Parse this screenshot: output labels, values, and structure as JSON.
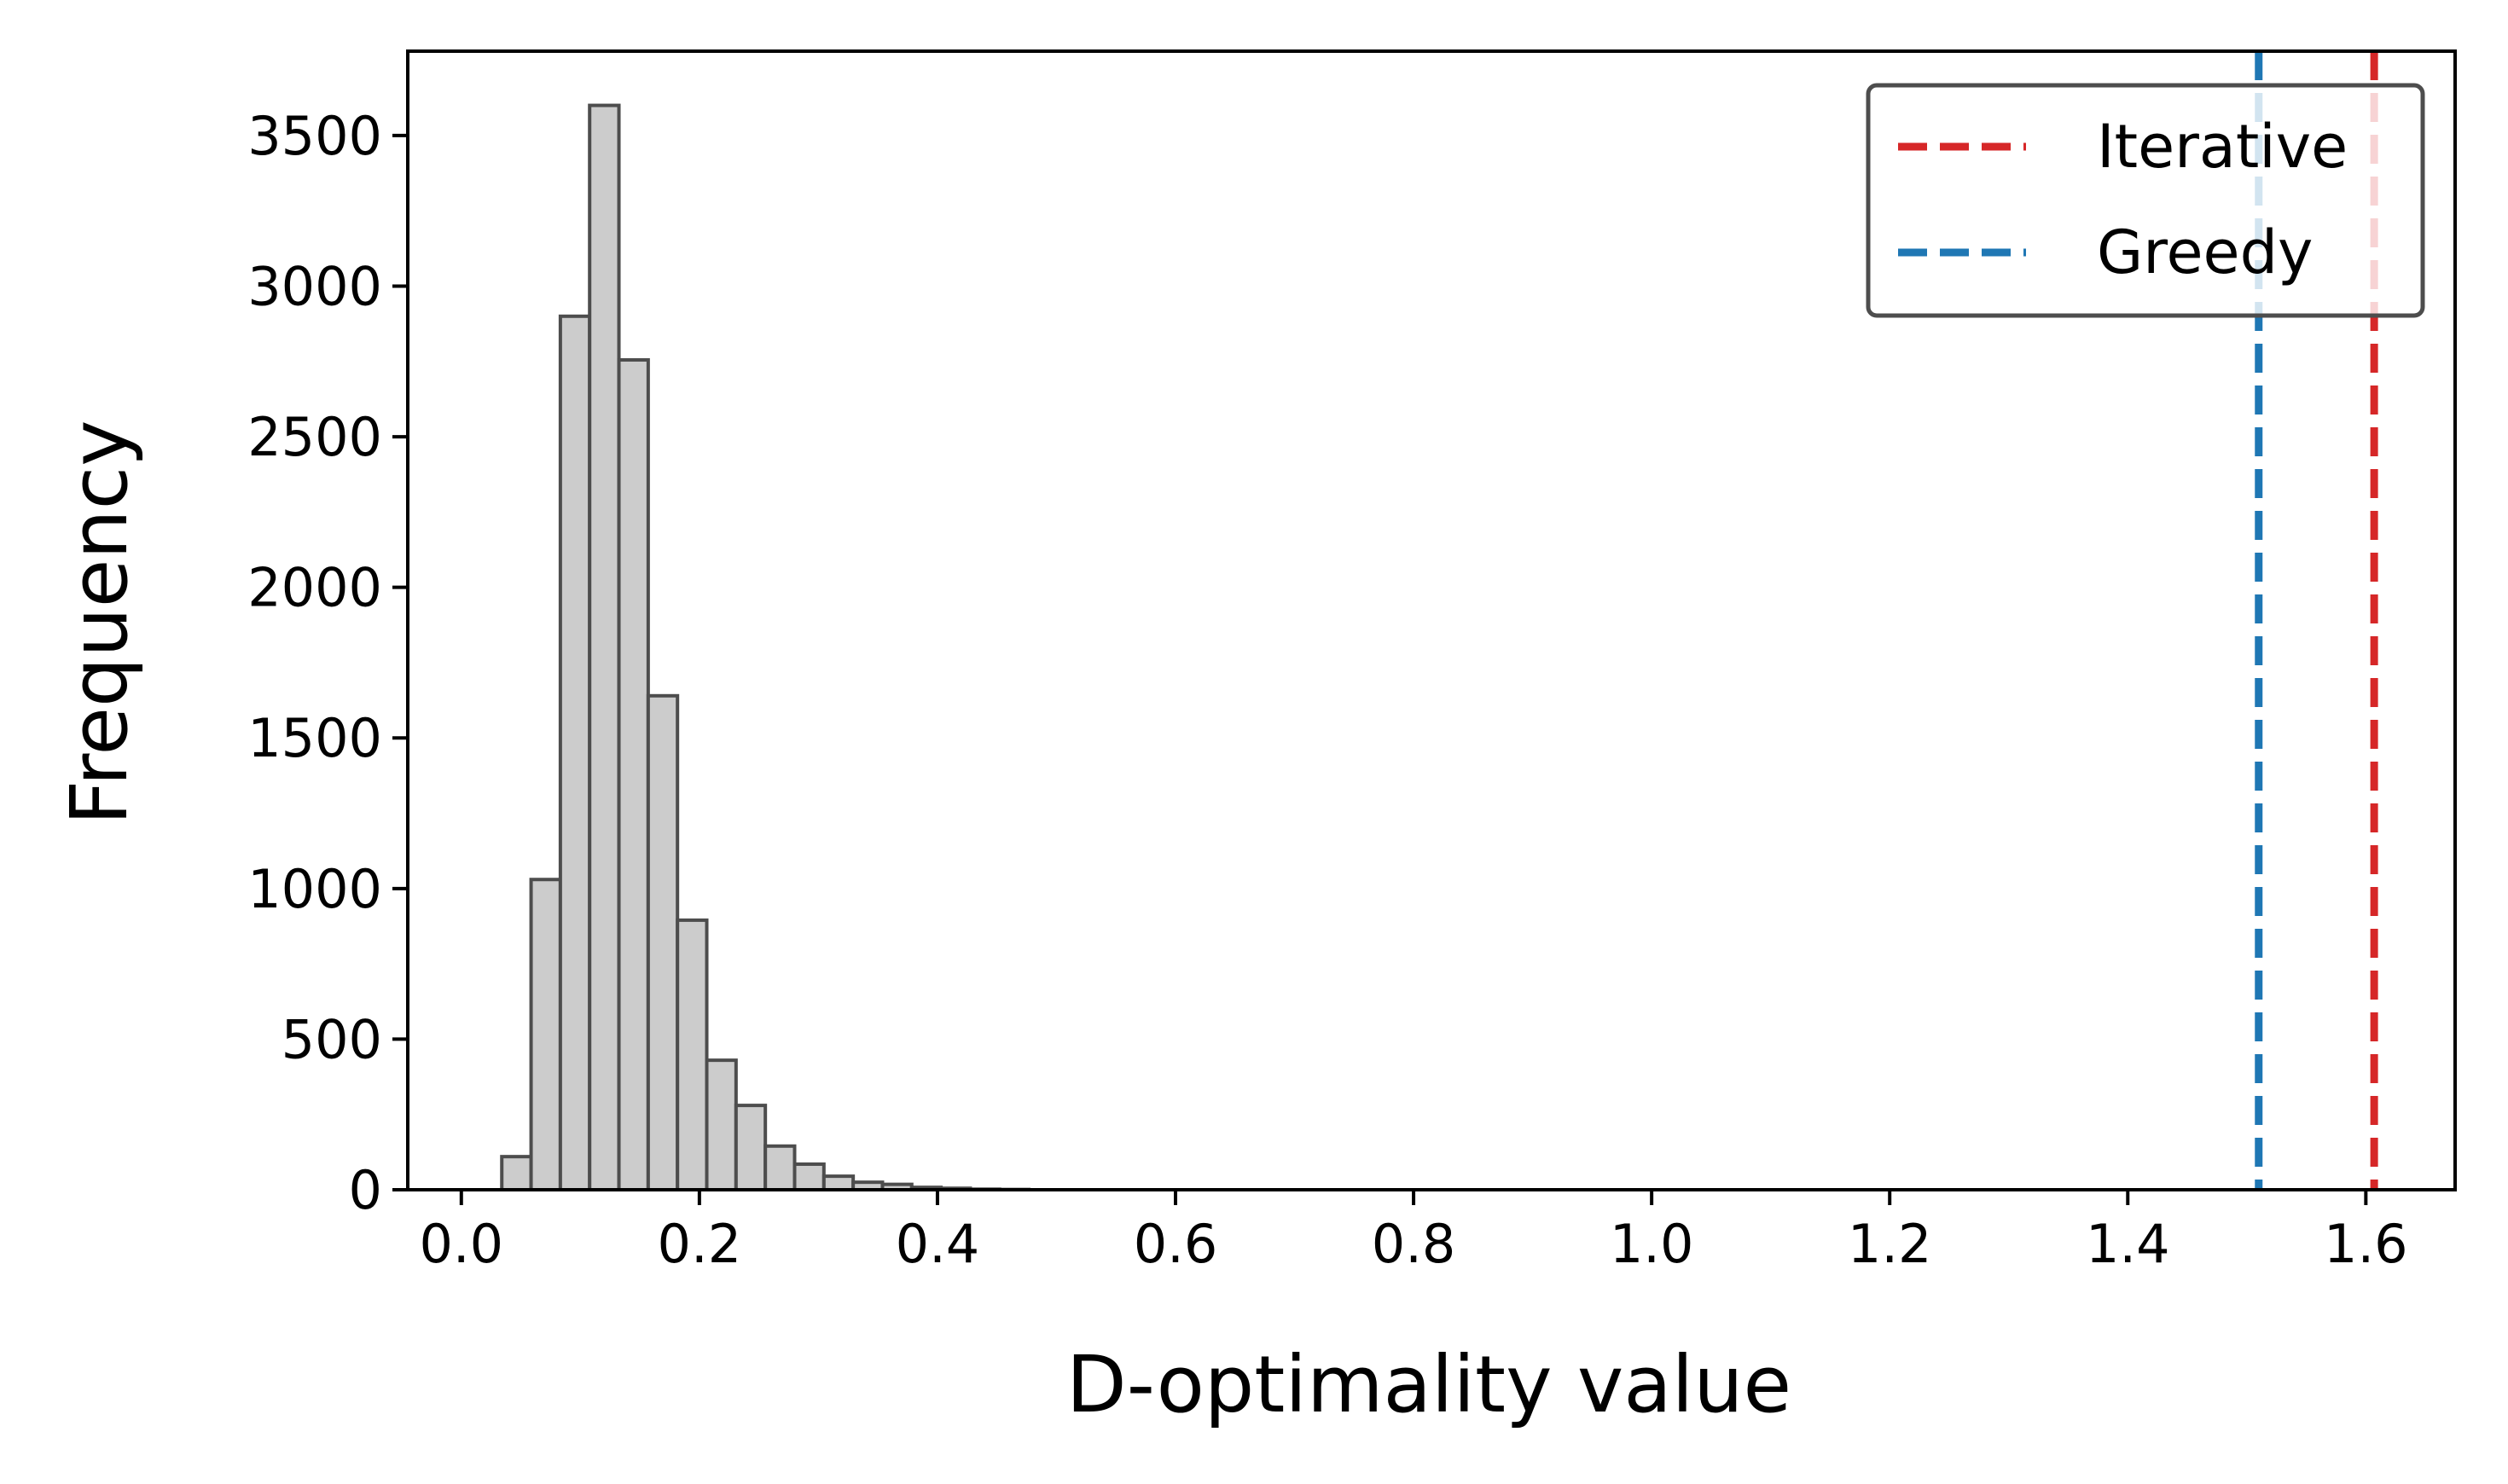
{
  "chart_data": {
    "type": "histogram",
    "title": "",
    "xlabel": "D-optimality value",
    "ylabel": "Frequency",
    "xlim": [
      -0.045,
      1.675
    ],
    "ylim": [
      0,
      3780
    ],
    "xticks": [
      0.0,
      0.2,
      0.4,
      0.6,
      0.8,
      1.0,
      1.2,
      1.4,
      1.6
    ],
    "xtick_labels": [
      "0.0",
      "0.2",
      "0.4",
      "0.6",
      "0.8",
      "1.0",
      "1.2",
      "1.4",
      "1.6"
    ],
    "yticks": [
      0,
      500,
      1000,
      1500,
      2000,
      2500,
      3000,
      3500
    ],
    "ytick_labels": [
      "0",
      "500",
      "1000",
      "1500",
      "2000",
      "2500",
      "3000",
      "3500"
    ],
    "bins": [
      {
        "left": 0.034,
        "right": 0.0586,
        "count": 110
      },
      {
        "left": 0.0586,
        "right": 0.0832,
        "count": 1030
      },
      {
        "left": 0.0832,
        "right": 0.1078,
        "count": 2900
      },
      {
        "left": 0.1078,
        "right": 0.1324,
        "count": 3600
      },
      {
        "left": 0.1324,
        "right": 0.157,
        "count": 2755
      },
      {
        "left": 0.157,
        "right": 0.1816,
        "count": 1640
      },
      {
        "left": 0.1816,
        "right": 0.2062,
        "count": 895
      },
      {
        "left": 0.2062,
        "right": 0.2308,
        "count": 430
      },
      {
        "left": 0.2308,
        "right": 0.2554,
        "count": 280
      },
      {
        "left": 0.2554,
        "right": 0.28,
        "count": 145
      },
      {
        "left": 0.28,
        "right": 0.3046,
        "count": 85
      },
      {
        "left": 0.3046,
        "right": 0.3292,
        "count": 45
      },
      {
        "left": 0.3292,
        "right": 0.3538,
        "count": 25
      },
      {
        "left": 0.3538,
        "right": 0.3784,
        "count": 18
      },
      {
        "left": 0.3784,
        "right": 0.403,
        "count": 8
      },
      {
        "left": 0.403,
        "right": 0.4276,
        "count": 5
      },
      {
        "left": 0.4276,
        "right": 0.4522,
        "count": 2
      },
      {
        "left": 0.4522,
        "right": 0.4768,
        "count": 1
      }
    ],
    "bar_fill": "#cccccc",
    "bar_edge": "#4d4d4d",
    "vlines": [
      {
        "name": "Iterative",
        "x": 1.607,
        "color": "#d62728",
        "style": "dashed"
      },
      {
        "name": "Greedy",
        "x": 1.51,
        "color": "#1f77b4",
        "style": "dashed"
      }
    ],
    "legend": {
      "location": "top-right",
      "entries": [
        "Iterative",
        "Greedy"
      ]
    },
    "grid": false
  }
}
